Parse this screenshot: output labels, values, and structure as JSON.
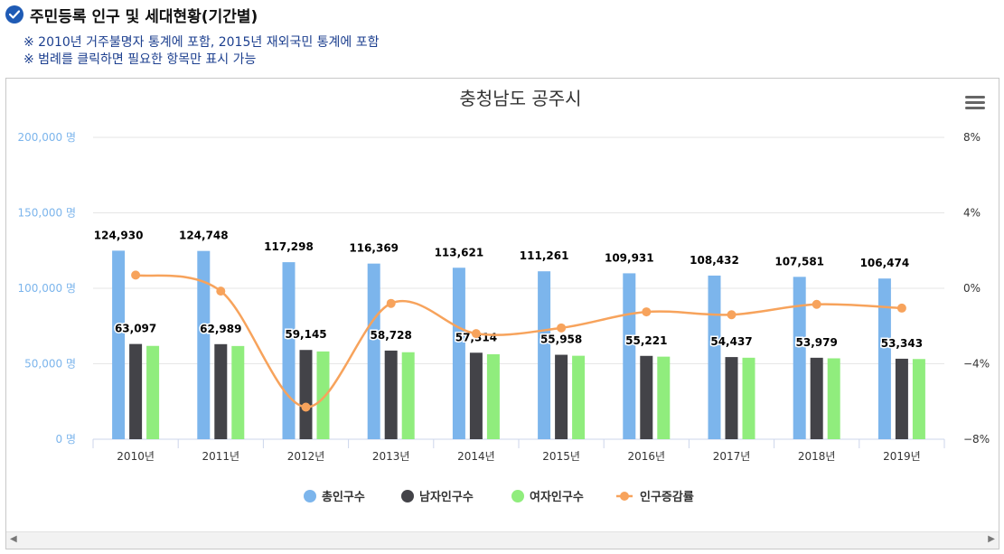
{
  "header": {
    "title": "주민등록 인구 및 세대현황(기간별)"
  },
  "notes": [
    "※ 2010년 거주불명자 통계에 포함, 2015년 재외국민 통계에 포함",
    "※ 범례를 클릭하면 필요한 항목만 표시 가능"
  ],
  "colors": {
    "total": "#7cb5ec",
    "male": "#434348",
    "female": "#90ed7d",
    "rate": "#f7a35c",
    "axis_left": "#7cb5ec",
    "axis_right": "#333333",
    "header_icon": "#1f5bb5"
  },
  "icons": {
    "header": "check-circle-icon",
    "menu": "hamburger-menu-icon",
    "scroll_left": "arrow-left-icon",
    "scroll_right": "arrow-right-icon"
  },
  "chart_data": {
    "type": "bar",
    "title": "충청남도 공주시",
    "categories": [
      "2010년",
      "2011년",
      "2012년",
      "2013년",
      "2014년",
      "2015년",
      "2016년",
      "2017년",
      "2018년",
      "2019년"
    ],
    "series": [
      {
        "name": "총인구수",
        "type": "bar",
        "axis": "left",
        "values": [
          124930,
          124748,
          117298,
          116369,
          113621,
          111261,
          109931,
          108432,
          107581,
          106474
        ],
        "labels": [
          "124,930",
          "124,748",
          "117,298",
          "116,369",
          "113,621",
          "111,261",
          "109,931",
          "108,432",
          "107,581",
          "106,474"
        ]
      },
      {
        "name": "남자인구수",
        "type": "bar",
        "axis": "left",
        "values": [
          63097,
          62989,
          59145,
          58728,
          57314,
          55958,
          55221,
          54437,
          53979,
          53343
        ],
        "labels": [
          "63,097",
          "62,989",
          "59,145",
          "58,728",
          "57,314",
          "55,958",
          "55,221",
          "54,437",
          "53,979",
          "53,343"
        ]
      },
      {
        "name": "여자인구수",
        "type": "bar",
        "axis": "left",
        "values": [
          61833,
          61759,
          58153,
          57641,
          56307,
          55303,
          54710,
          53995,
          53602,
          53131
        ]
      },
      {
        "name": "인구증감률",
        "type": "line",
        "axis": "right",
        "values": [
          0.7,
          -0.15,
          -6.3,
          -0.8,
          -2.4,
          -2.1,
          -1.25,
          -1.4,
          -0.85,
          -1.05
        ]
      }
    ],
    "y_left": {
      "min": 0,
      "max": 200000,
      "ticks": [
        0,
        50000,
        100000,
        150000,
        200000
      ],
      "tick_labels": [
        "0 명",
        "50,000 명",
        "100,000 명",
        "150,000 명",
        "200,000 명"
      ]
    },
    "y_right": {
      "min": -8,
      "max": 8,
      "ticks": [
        -8,
        -4,
        0,
        4,
        8
      ],
      "tick_labels": [
        "−8%",
        "−4%",
        "0%",
        "4%",
        "8%"
      ]
    },
    "grid": true,
    "legend_position": "bottom"
  }
}
